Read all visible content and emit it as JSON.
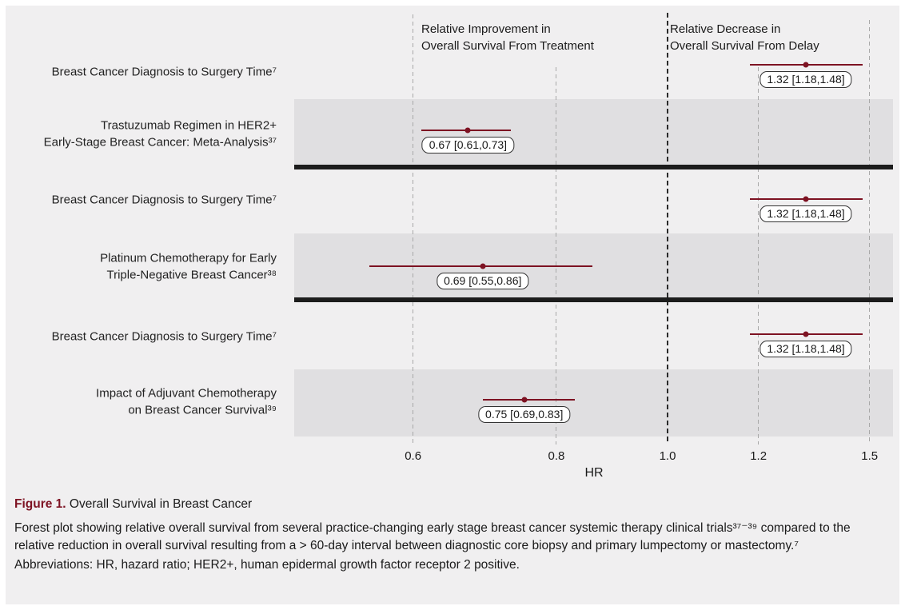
{
  "figure_caption": {
    "title_label": "Figure 1.",
    "title_text": " Overall Survival in Breast Cancer",
    "body": "Forest plot showing relative overall survival from several practice-changing early stage breast cancer systemic therapy clinical trials³⁷⁻³⁹ compared to the relative reduction in overall survival resulting from a > 60-day interval between diagnostic core biopsy and primary lumpectomy or mastectomy.⁷",
    "abbreviations": "Abbreviations: HR, hazard ratio; HER2+, human epidermal growth factor receptor 2 positive."
  },
  "chart_data": {
    "type": "scatter",
    "subtype": "forest-plot",
    "xlabel": "HR",
    "x_scale": "log",
    "x_ticks": [
      {
        "value": 0.6,
        "label": "0.6"
      },
      {
        "value": 0.8,
        "label": "0.8"
      },
      {
        "value": 1.0,
        "label": "1.0"
      },
      {
        "value": 1.2,
        "label": "1.2"
      },
      {
        "value": 1.5,
        "label": "1.5"
      }
    ],
    "reference_line": 1.0,
    "xlim": [
      0.5,
      1.55
    ],
    "grid": "vertical-dashed",
    "column_headers": {
      "left": "Relative Improvement in\nOverall Survival From Treatment",
      "right": "Relative Decrease in\nOverall Survival From Delay"
    },
    "rows": [
      {
        "label_lines": [
          "Breast Cancer Diagnosis to Surgery Time⁷"
        ],
        "hr": 1.32,
        "ci_low": 1.18,
        "ci_high": 1.48,
        "estimate_label": "1.32 [1.18,1.48]",
        "shaded": false,
        "divider_after": false
      },
      {
        "label_lines": [
          "Trastuzumab Regimen in HER2+",
          "Early-Stage Breast Cancer: Meta-Analysis³⁷"
        ],
        "hr": 0.67,
        "ci_low": 0.61,
        "ci_high": 0.73,
        "estimate_label": "0.67 [0.61,0.73]",
        "shaded": true,
        "divider_after": true
      },
      {
        "label_lines": [
          "Breast Cancer Diagnosis to Surgery Time⁷"
        ],
        "hr": 1.32,
        "ci_low": 1.18,
        "ci_high": 1.48,
        "estimate_label": "1.32 [1.18,1.48]",
        "shaded": false,
        "divider_after": false
      },
      {
        "label_lines": [
          "Platinum Chemotherapy for Early",
          "Triple-Negative Breast Cancer³⁸"
        ],
        "hr": 0.69,
        "ci_low": 0.55,
        "ci_high": 0.86,
        "estimate_label": "0.69 [0.55,0.86]",
        "shaded": true,
        "divider_after": true
      },
      {
        "label_lines": [
          "Breast Cancer Diagnosis to Surgery Time⁷"
        ],
        "hr": 1.32,
        "ci_low": 1.18,
        "ci_high": 1.48,
        "estimate_label": "1.32 [1.18,1.48]",
        "shaded": false,
        "divider_after": false
      },
      {
        "label_lines": [
          "Impact of Adjuvant Chemotherapy",
          "on Breast Cancer Survival³⁹"
        ],
        "hr": 0.75,
        "ci_low": 0.69,
        "ci_high": 0.83,
        "estimate_label": "0.75 [0.69,0.83]",
        "shaded": true,
        "divider_after": false
      }
    ],
    "colors": {
      "marker": "#7d1222",
      "band": "#e0dfe1",
      "background": "#f0eff0",
      "divider": "#1c1c1c",
      "grid_light": "#a8a8a8",
      "grid_dark": "#2a2a2a",
      "figure_label": "#7d1222"
    }
  }
}
